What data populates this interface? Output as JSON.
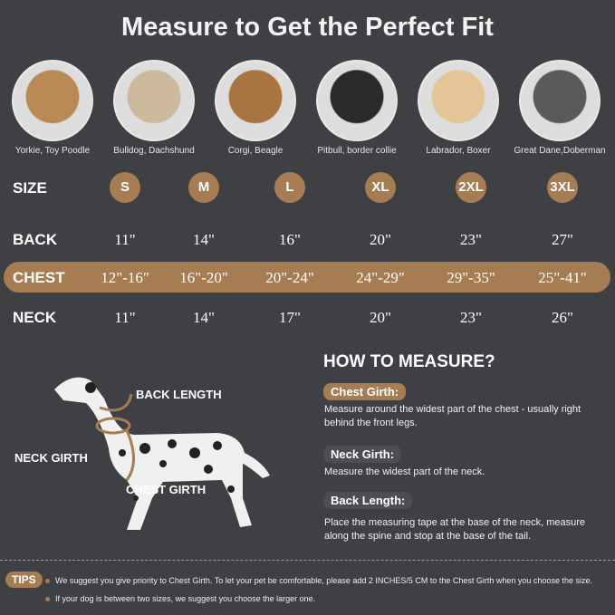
{
  "title": "Measure to Get the Perfect Fit",
  "breeds": [
    {
      "label": "Yorkie, Toy Poodle",
      "color": "#b98a55"
    },
    {
      "label": "Bulldog, Dachshund",
      "color": "#cdb99c"
    },
    {
      "label": "Corgi, Beagle",
      "color": "#a9743f"
    },
    {
      "label": "Pitbull, border collie",
      "color": "#2a2a2a"
    },
    {
      "label": "Labrador, Boxer",
      "color": "#e3c597"
    },
    {
      "label": "Great Dane,Doberman",
      "color": "#5a5a5a"
    }
  ],
  "table": {
    "size": {
      "label": "SIZE",
      "values": [
        "S",
        "M",
        "L",
        "XL",
        "2XL",
        "3XL"
      ]
    },
    "back": {
      "label": "BACK",
      "values": [
        "11\"",
        "14\"",
        "16\"",
        "20\"",
        "23\"",
        "27\""
      ]
    },
    "chest": {
      "label": "CHEST",
      "values": [
        "12\"-16\"",
        "16\"-20\"",
        "20\"-24\"",
        "24\"-29\"",
        "29\"-35\"",
        "25\"-41\""
      ]
    },
    "neck": {
      "label": "NECK",
      "values": [
        "11\"",
        "14\"",
        "17\"",
        "20\"",
        "23\"",
        "26\""
      ]
    }
  },
  "diagram": {
    "back_length": "BACK LENGTH",
    "neck_girth": "NECK GIRTH",
    "chest_girth": "CHEST GIRTH"
  },
  "how": {
    "title": "HOW TO MEASURE?",
    "chest": {
      "label": "Chest Girth:",
      "text": "Measure around the widest part of the chest - usually right behind the front legs."
    },
    "neck": {
      "label": "Neck Girth:",
      "text": "Measure the widest part of the neck."
    },
    "back": {
      "label": "Back Length:",
      "text": "Place the measuring tape at the base of the neck, measure along the spine and stop at the base of the tail."
    }
  },
  "tips": {
    "label": "TIPS",
    "items": [
      "We suggest you give priority to Chest Girth. To let your pet be comfortable, please add 2 INCHES/5 CM to the Chest Girth when you choose the size.",
      "If your dog is between two sizes, we suggest you choose the larger one."
    ]
  },
  "colors": {
    "background": "#3f4043",
    "accent": "#a67c52"
  }
}
